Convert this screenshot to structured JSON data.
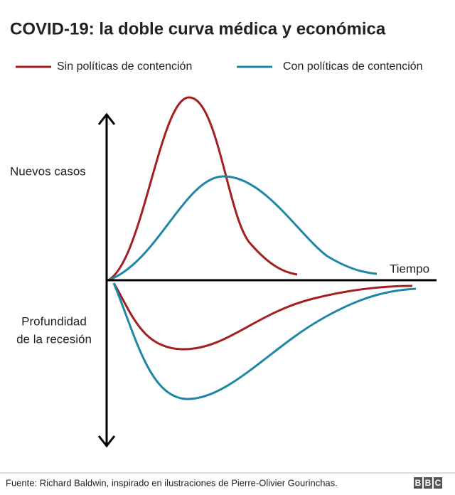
{
  "title": "COVID-19: la doble curva médica y económica",
  "legend": [
    {
      "name": "Sin políticas de contención",
      "color": "#a51e22"
    },
    {
      "name": "Con políticas de contención",
      "color": "#1f87a6"
    }
  ],
  "axis": {
    "upper_label": "Nuevos casos",
    "lower_label": [
      "Profundidad",
      "de la recesión"
    ],
    "x_label": "Tiempo"
  },
  "footer": {
    "source": "Fuente: Richard Baldwin, inspirado en ilustraciones de Pierre-Olivier Gourinchas.",
    "logo": [
      "B",
      "B",
      "C"
    ]
  }
}
